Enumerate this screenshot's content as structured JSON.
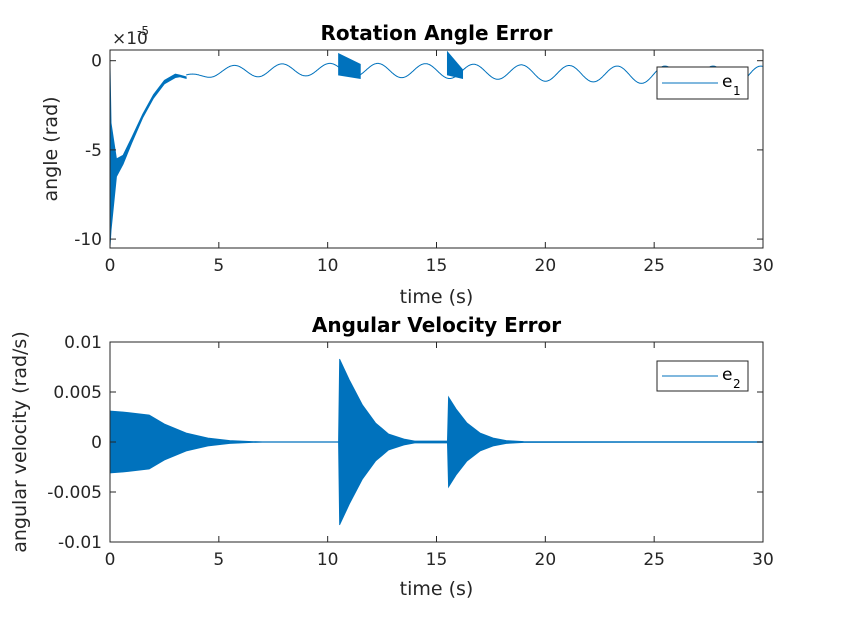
{
  "chart_data": [
    {
      "type": "line",
      "title": "Rotation Angle Error",
      "xlabel": "time (s)",
      "ylabel": "angle (rad)",
      "exponent_base": "×10",
      "exponent_power": "-5",
      "xlim": [
        0,
        30
      ],
      "ylim": [
        -10.5,
        0.6
      ],
      "y_scale_note": "values in units of 1e-5 rad",
      "xticks": [
        0,
        5,
        10,
        15,
        20,
        25,
        30
      ],
      "xtick_labels": [
        "0",
        "5",
        "10",
        "15",
        "20",
        "25",
        "30"
      ],
      "yticks": [
        0,
        -5,
        -10
      ],
      "ytick_labels": [
        "0",
        "-5",
        "-10"
      ],
      "grid": false,
      "legend_placement": "top-right",
      "color": "#0072BD",
      "series": [
        {
          "name": "e",
          "name_sub": "1",
          "envelope": {
            "t": [
              0,
              0.05,
              0.3,
              0.6,
              1.0,
              1.5,
              2.0,
              2.5,
              3.0,
              3.2,
              3.5
            ],
            "upper": [
              0,
              -3.5,
              -5.5,
              -5.3,
              -4.3,
              -3.0,
              -1.9,
              -1.1,
              -0.75,
              -0.8,
              -0.9
            ],
            "lower": [
              -10.5,
              -9.5,
              -6.5,
              -5.8,
              -4.6,
              -3.2,
              -2.1,
              -1.3,
              -0.95,
              -0.9,
              -1.0
            ]
          },
          "oscillation": {
            "t": [
              3.5,
              5,
              7,
              9,
              10.5,
              12,
              14,
              15.5,
              17,
              20,
              23,
              25,
              27,
              30
            ],
            "mean": [
              -0.9,
              -0.6,
              -0.55,
              -0.5,
              -0.5,
              -0.55,
              -0.55,
              -0.6,
              -0.6,
              -0.7,
              -0.75,
              -0.8,
              -0.8,
              -0.8
            ],
            "amplitude": [
              0.1,
              0.3,
              0.35,
              0.35,
              0.35,
              0.4,
              0.4,
              0.4,
              0.4,
              0.45,
              0.45,
              0.5,
              0.5,
              0.5
            ],
            "period": 2.2
          },
          "bursts": [
            {
              "t0": 10.5,
              "t1": 11.5,
              "upper": [
                0.4,
                -0.2
              ],
              "lower": [
                -0.8,
                -1.0
              ]
            },
            {
              "t0": 15.5,
              "t1": 16.2,
              "upper": [
                0.5,
                -0.5
              ],
              "lower": [
                -0.8,
                -1.0
              ]
            }
          ]
        }
      ]
    },
    {
      "type": "line",
      "title": "Angular Velocity Error",
      "xlabel": "time (s)",
      "ylabel": "angular velocity (rad/s)",
      "xlim": [
        0,
        30
      ],
      "ylim": [
        -0.01,
        0.01
      ],
      "xticks": [
        0,
        5,
        10,
        15,
        20,
        25,
        30
      ],
      "xtick_labels": [
        "0",
        "5",
        "10",
        "15",
        "20",
        "25",
        "30"
      ],
      "yticks": [
        0.01,
        0.005,
        0,
        -0.005,
        -0.01
      ],
      "ytick_labels": [
        "0.01",
        "0.005",
        "0",
        "-0.005",
        "-0.01"
      ],
      "grid": false,
      "legend_placement": "top-right",
      "color": "#0072BD",
      "series": [
        {
          "name": "e",
          "name_sub": "2",
          "envelope": {
            "t": [
              0,
              0.6,
              1.8,
              2.5,
              3.5,
              4.5,
              5.5,
              6.5,
              7.0,
              10.5,
              10.55,
              11.0,
              11.6,
              12.2,
              12.8,
              13.5,
              14.0,
              15.5,
              15.55,
              15.9,
              16.4,
              17.0,
              17.6,
              18.2,
              19.0,
              30
            ],
            "upper": [
              0.0031,
              0.003,
              0.0027,
              0.0018,
              0.0009,
              0.0004,
              0.00015,
              5e-05,
              2e-05,
              2e-05,
              0.0083,
              0.0062,
              0.0037,
              0.0019,
              0.0008,
              0.0003,
              0.0001,
              0.0001,
              0.0045,
              0.0033,
              0.0019,
              0.0009,
              0.0004,
              0.00015,
              5e-05,
              3e-05
            ],
            "lower": [
              -0.0031,
              -0.003,
              -0.0027,
              -0.0018,
              -0.0009,
              -0.0004,
              -0.00015,
              -5e-05,
              -2e-05,
              -2e-05,
              -0.0083,
              -0.0062,
              -0.0037,
              -0.0019,
              -0.0008,
              -0.0003,
              -0.0001,
              -0.0001,
              -0.0045,
              -0.0033,
              -0.0019,
              -0.0009,
              -0.0004,
              -0.00015,
              -5e-05,
              -3e-05
            ]
          }
        }
      ]
    }
  ]
}
